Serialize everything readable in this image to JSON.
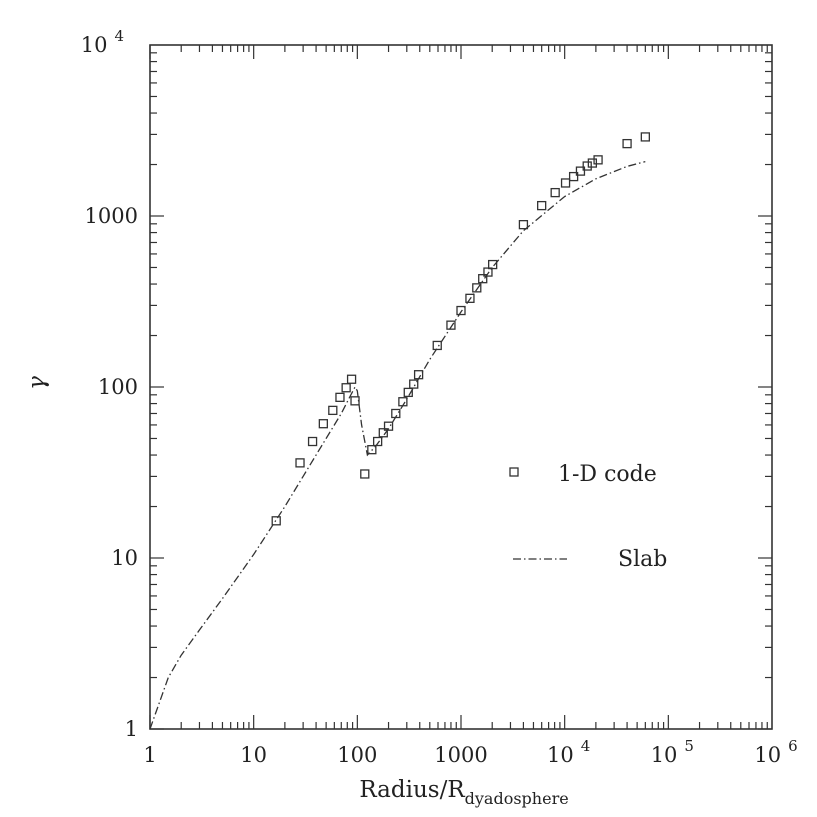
{
  "chart_data": {
    "type": "scatter",
    "xscale": "log",
    "yscale": "log",
    "xlim": [
      1,
      1000000
    ],
    "ylim": [
      1,
      10000
    ],
    "grid": false,
    "legend_position": "right",
    "xlabel": {
      "main": "Radius/R",
      "sub": "dyadosphere"
    },
    "ylabel": "γ",
    "x_ticks": [
      {
        "value": 1,
        "base": "1",
        "exp": ""
      },
      {
        "value": 10,
        "base": "10",
        "exp": ""
      },
      {
        "value": 100,
        "base": "100",
        "exp": ""
      },
      {
        "value": 1000,
        "base": "1000",
        "exp": ""
      },
      {
        "value": 10000,
        "base": "10",
        "exp": "4"
      },
      {
        "value": 100000,
        "base": "10",
        "exp": "5"
      },
      {
        "value": 1000000,
        "base": "10",
        "exp": "6"
      }
    ],
    "y_ticks": [
      {
        "value": 1,
        "base": "1",
        "exp": ""
      },
      {
        "value": 10,
        "base": "10",
        "exp": ""
      },
      {
        "value": 100,
        "base": "100",
        "exp": ""
      },
      {
        "value": 1000,
        "base": "1000",
        "exp": ""
      },
      {
        "value": 10000,
        "base": "10",
        "exp": "4"
      }
    ],
    "series": [
      {
        "name": "1-D code",
        "marker": "open-square",
        "color": "#333333",
        "points": [
          [
            16.5,
            16.5
          ],
          [
            28,
            36
          ],
          [
            37,
            48
          ],
          [
            47,
            61
          ],
          [
            58,
            73
          ],
          [
            68,
            87
          ],
          [
            78,
            99
          ],
          [
            88,
            111
          ],
          [
            95,
            83
          ],
          [
            118,
            31
          ],
          [
            138,
            43
          ],
          [
            157,
            48
          ],
          [
            178,
            54
          ],
          [
            200,
            59
          ],
          [
            235,
            70
          ],
          [
            275,
            82
          ],
          [
            310,
            93
          ],
          [
            350,
            104
          ],
          [
            390,
            118
          ],
          [
            590,
            175
          ],
          [
            800,
            230
          ],
          [
            1000,
            280
          ],
          [
            1220,
            330
          ],
          [
            1420,
            380
          ],
          [
            1620,
            430
          ],
          [
            1820,
            470
          ],
          [
            2020,
            520
          ],
          [
            4000,
            890
          ],
          [
            6000,
            1150
          ],
          [
            8100,
            1370
          ],
          [
            10200,
            1560
          ],
          [
            12200,
            1700
          ],
          [
            14200,
            1830
          ],
          [
            16500,
            1960
          ],
          [
            18500,
            2040
          ],
          [
            21000,
            2130
          ],
          [
            40000,
            2650
          ],
          [
            60000,
            2900
          ]
        ]
      },
      {
        "name": "Slab",
        "line": "dash-dot",
        "color": "#333333",
        "points": [
          [
            1,
            1
          ],
          [
            1.5,
            2
          ],
          [
            2,
            2.7
          ],
          [
            3,
            3.8
          ],
          [
            5,
            5.8
          ],
          [
            10,
            10.5
          ],
          [
            20,
            20
          ],
          [
            30,
            30
          ],
          [
            50,
            50
          ],
          [
            70,
            70
          ],
          [
            85,
            88
          ],
          [
            95,
            100
          ],
          [
            100,
            95
          ],
          [
            110,
            60
          ],
          [
            125,
            40
          ],
          [
            150,
            45
          ],
          [
            200,
            57
          ],
          [
            300,
            85
          ],
          [
            500,
            145
          ],
          [
            1000,
            275
          ],
          [
            2000,
            500
          ],
          [
            4000,
            820
          ],
          [
            10000,
            1300
          ],
          [
            20000,
            1650
          ],
          [
            40000,
            1950
          ],
          [
            60000,
            2080
          ]
        ]
      }
    ]
  }
}
